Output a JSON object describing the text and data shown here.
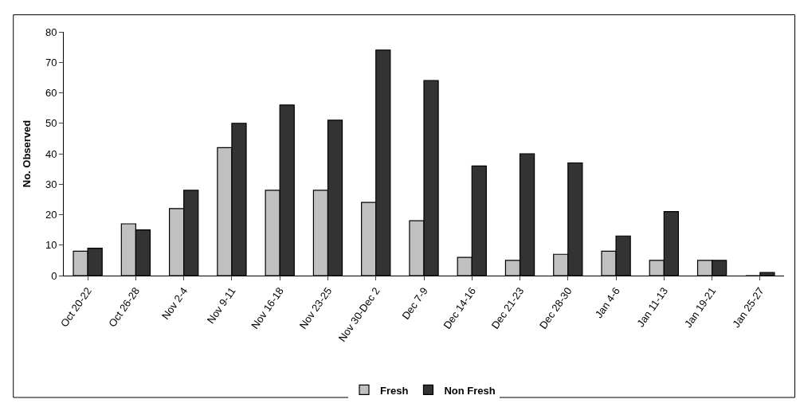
{
  "chart_data": {
    "type": "bar",
    "ylabel": "No. Observed",
    "categories": [
      "Oct 20-22",
      "Oct 26-28",
      "Nov 2-4",
      "Nov 9-11",
      "Nov 16-18",
      "Nov 23-25",
      "Nov 30-Dec 2",
      "Dec 7-9",
      "Dec 14-16",
      "Dec 21-23",
      "Dec 28-30",
      "Jan 4-6",
      "Jan 11-13",
      "Jan 19-21",
      "Jan 25-27"
    ],
    "series": [
      {
        "name": "Fresh",
        "color": "#c0c0c0",
        "values": [
          8,
          17,
          22,
          42,
          28,
          28,
          24,
          18,
          6,
          5,
          7,
          8,
          5,
          5,
          0
        ]
      },
      {
        "name": "Non Fresh",
        "color": "#333333",
        "values": [
          9,
          15,
          28,
          50,
          56,
          51,
          74,
          64,
          36,
          40,
          37,
          13,
          21,
          5,
          1
        ]
      }
    ],
    "ylim": [
      0,
      80
    ],
    "yticks": [
      0,
      10,
      20,
      30,
      40,
      50,
      60,
      70,
      80
    ],
    "grid": false,
    "legend": "bottom"
  }
}
